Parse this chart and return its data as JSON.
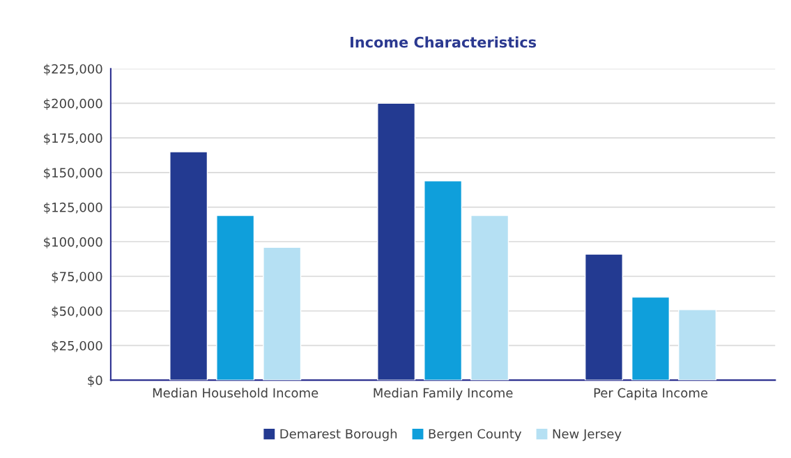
{
  "chart_data": {
    "type": "bar",
    "title": "Income Characteristics",
    "categories": [
      "Median Household Income",
      "Median Family Income",
      "Per Capita Income"
    ],
    "series": [
      {
        "name": "Demarest Borough",
        "color": "#233a91",
        "values": [
          165000,
          200000,
          91000
        ]
      },
      {
        "name": "Bergen County",
        "color": "#0f9fdb",
        "values": [
          119000,
          144000,
          60000
        ]
      },
      {
        "name": "New Jersey",
        "color": "#b5e0f3",
        "values": [
          96000,
          119000,
          51000
        ]
      }
    ],
    "ylim": [
      0,
      225000
    ],
    "yticks": [
      {
        "value": 0,
        "label": "$0"
      },
      {
        "value": 25000,
        "label": "$25,000"
      },
      {
        "value": 50000,
        "label": "$50,000"
      },
      {
        "value": 75000,
        "label": "$75,000"
      },
      {
        "value": 100000,
        "label": "$100,000"
      },
      {
        "value": 125000,
        "label": "$125,000"
      },
      {
        "value": 150000,
        "label": "$150,000"
      },
      {
        "value": 175000,
        "label": "$175,000"
      },
      {
        "value": 200000,
        "label": "$200,000"
      },
      {
        "value": 225000,
        "label": "$225,000"
      }
    ],
    "grid": "y",
    "legend": "bottom"
  }
}
